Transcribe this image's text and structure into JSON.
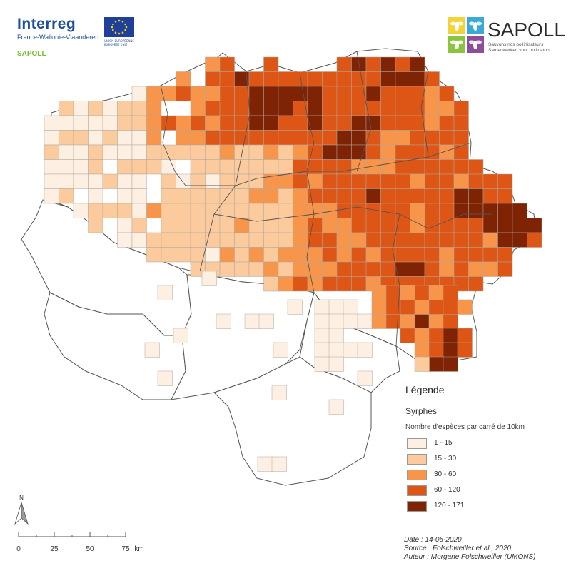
{
  "logos": {
    "interreg": {
      "name": "Interreg",
      "subtitle": "France-Wallonie-Vlaanderen",
      "project": "SAPOLL",
      "eu_text": "UNION EUROPÉENNE EUROPESE UNIE"
    },
    "sapoll": {
      "name": "SAPOLL",
      "tagline_fr": "Sauvons nos pollinisateurs",
      "tagline_nl": "Samenwerken voor pollinators",
      "colors": [
        "#f2d43a",
        "#3aa9d8",
        "#8cc43f",
        "#8e4c9a"
      ]
    }
  },
  "legend": {
    "title": "Légende",
    "subtitle": "Syrphes",
    "description": "Nombre d'espèces par carré de 10km",
    "classes": [
      {
        "label": "1 - 15",
        "color": "#fdefe2"
      },
      {
        "label": "15 - 30",
        "color": "#fbcb9e"
      },
      {
        "label": "30 - 60",
        "color": "#f7954b"
      },
      {
        "label": "60 - 120",
        "color": "#de5615"
      },
      {
        "label": "120 - 171",
        "color": "#7e2304"
      }
    ]
  },
  "credits": {
    "date": "Date : 14-05-2020",
    "source": "Source : Folschweiller et al., 2020",
    "author": "Auteur : Morgane Folschweiller (UMONS)"
  },
  "north_label": "N",
  "scale": {
    "ticks": [
      "0",
      "25",
      "50",
      "75"
    ],
    "unit": "km"
  },
  "colors": {
    "boundary": "#555555",
    "grid_line": "#b0a79e"
  }
}
